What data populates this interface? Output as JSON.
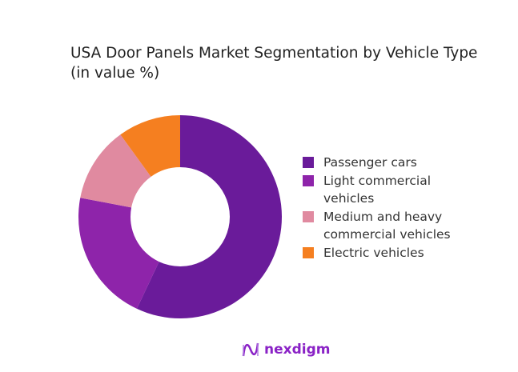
{
  "chart_data": {
    "type": "pie",
    "variant": "donut",
    "title": "USA Door Panels Market Segmentation by Vehicle Type",
    "subtitle": "(in value %)",
    "legend_position": "right",
    "series": [
      {
        "name": "Passenger cars",
        "value": 57,
        "color": "#6a1b9a"
      },
      {
        "name": "Light commercial vehicles",
        "value": 21,
        "color": "#8e24aa"
      },
      {
        "name": "Medium and heavy commercial vehicles",
        "value": 12,
        "color": "#e08aa0"
      },
      {
        "name": "Electric vehicles",
        "value": 10,
        "color": "#f57f20"
      }
    ]
  },
  "brand": {
    "name": "nexdigm"
  }
}
